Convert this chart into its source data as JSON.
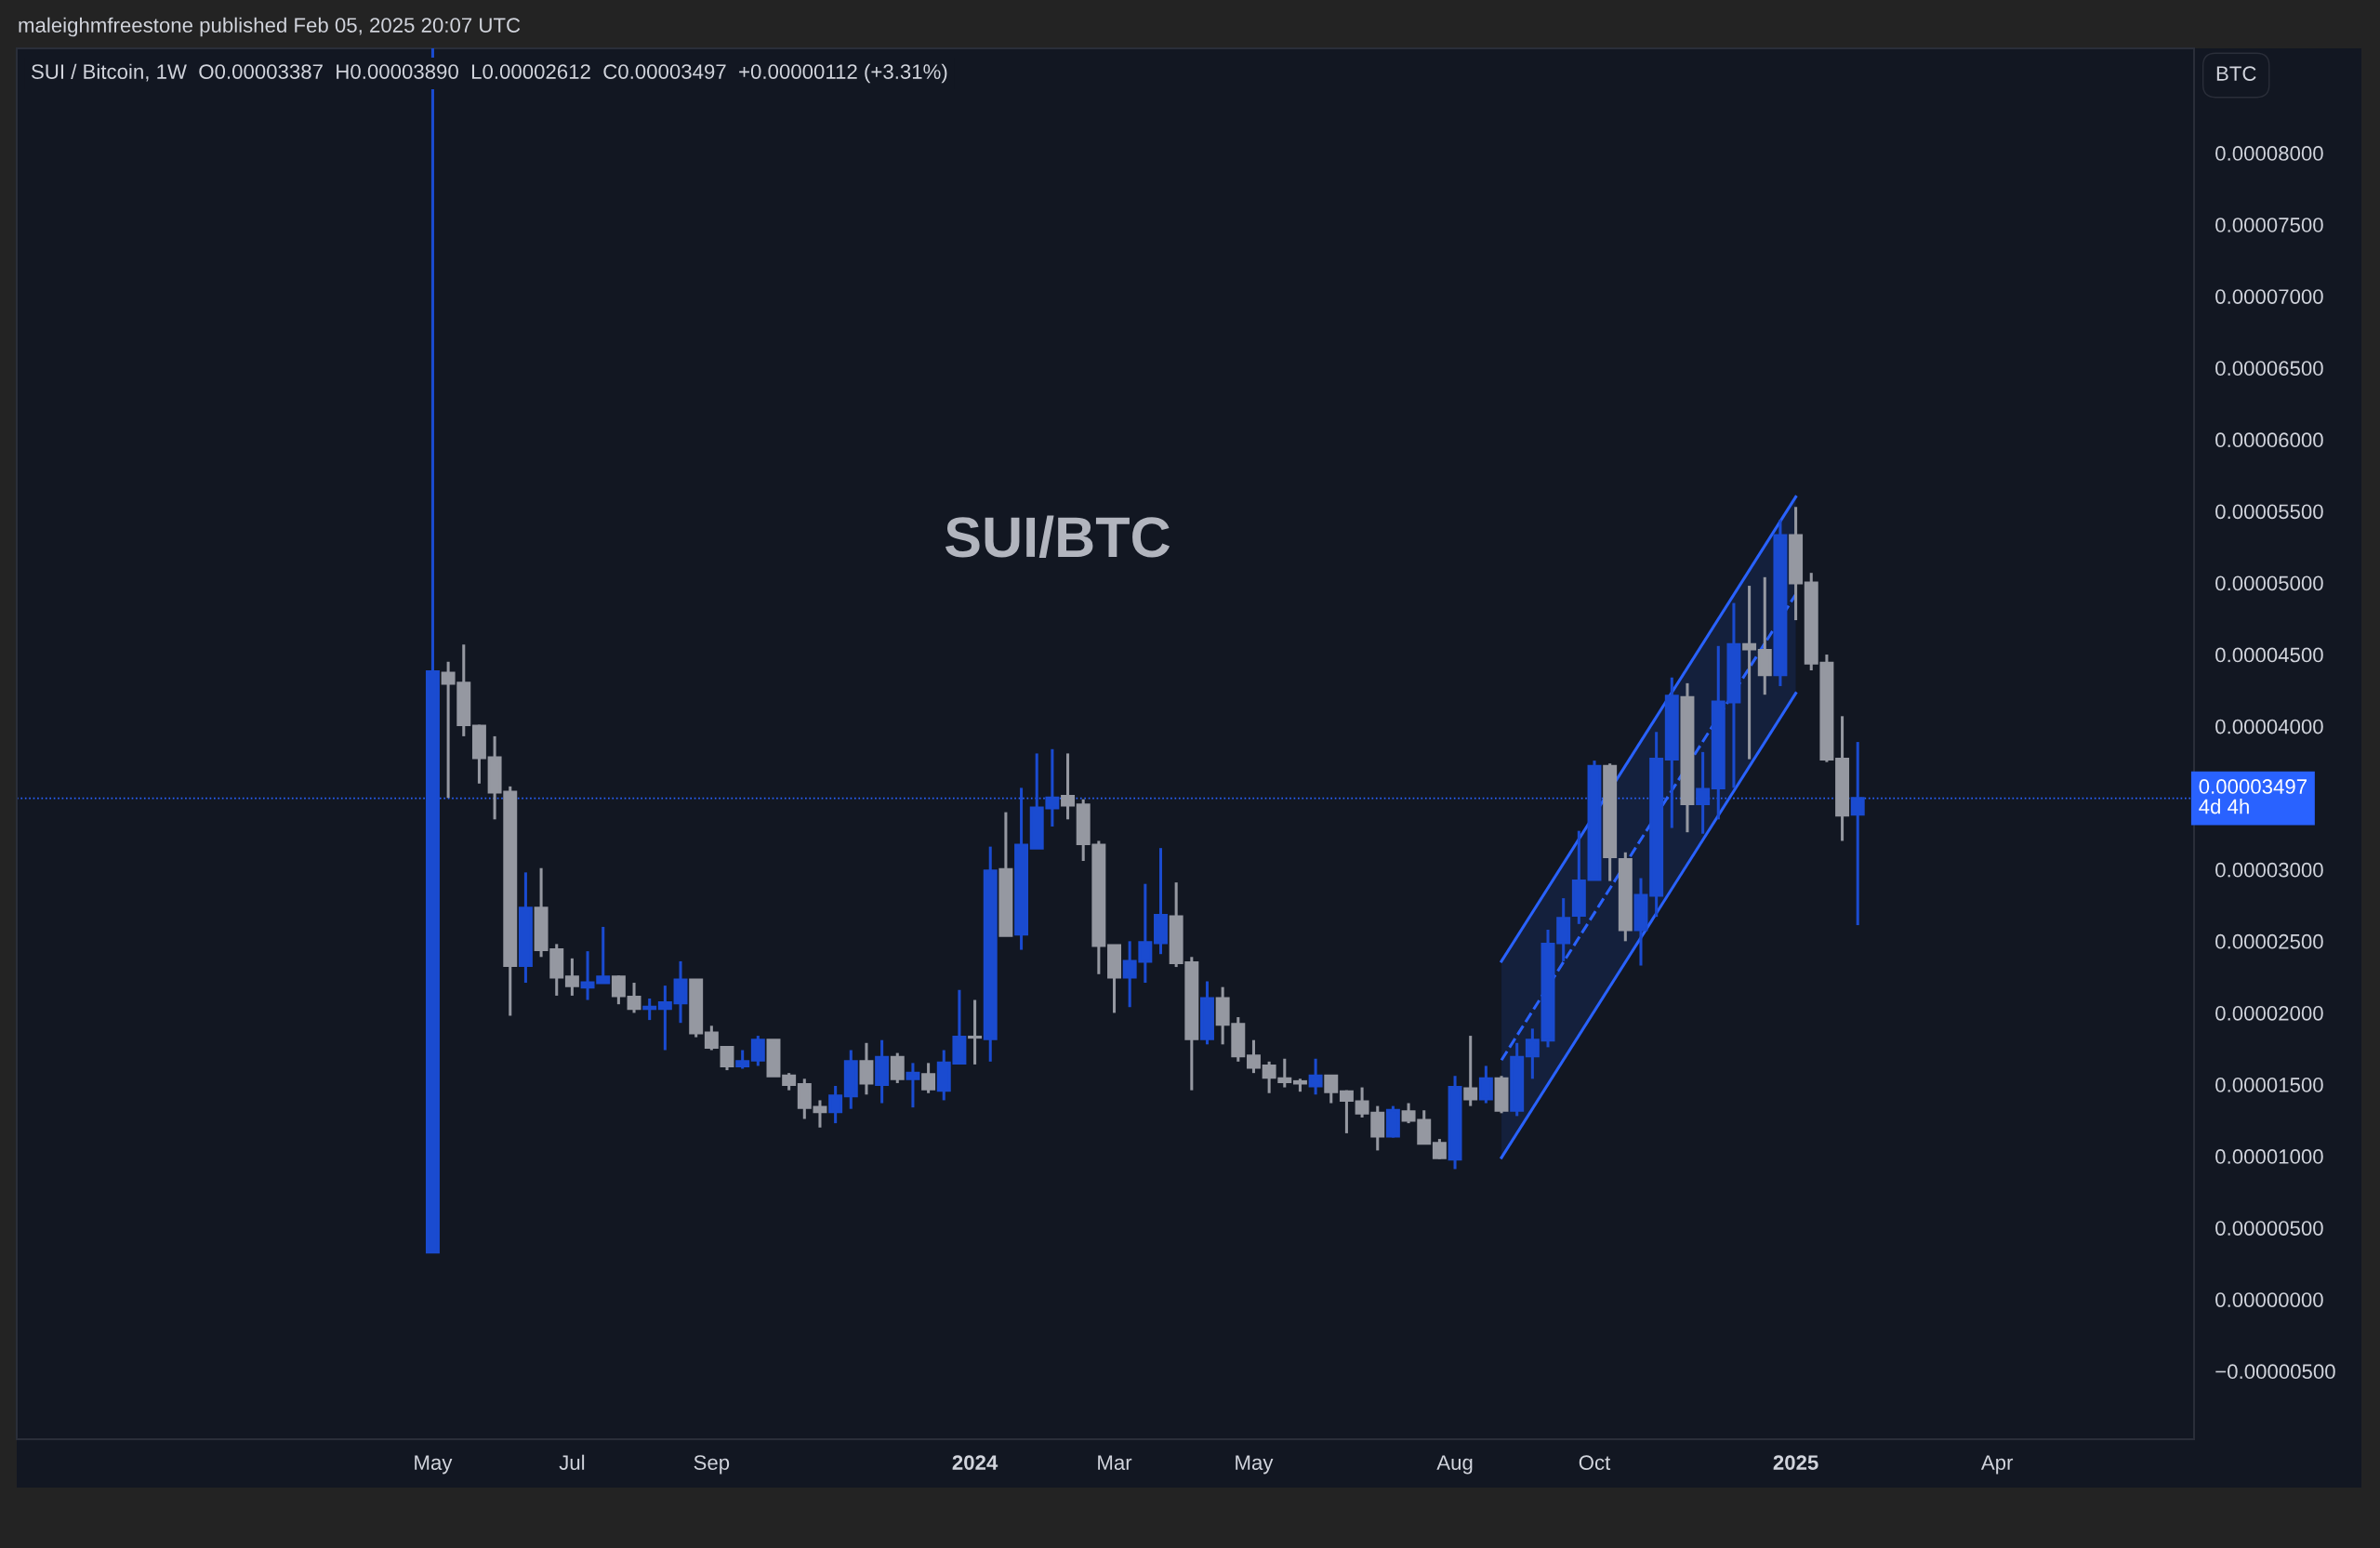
{
  "chart_data": {
    "type": "candlestick",
    "title": "SUI/BTC",
    "subtitle": "SUI / Bitcoin, 1W  O0.00003387  H0.00003890  L0.00002612  C0.00003497  +0.00000112 (+3.31%)",
    "annotations": [
      "maleighmfreestone published Feb 05, 2025 20:07 UTC",
      "BTC"
    ],
    "x": [
      "2023-05-01",
      "2023-05-08",
      "2023-05-15",
      "2023-05-22",
      "2023-05-29",
      "2023-06-05",
      "2023-06-12",
      "2023-06-19",
      "2023-06-26",
      "2023-07-03",
      "2023-07-10",
      "2023-07-17",
      "2023-07-24",
      "2023-07-31",
      "2023-08-07",
      "2023-08-14",
      "2023-08-21",
      "2023-08-28",
      "2023-09-04",
      "2023-09-11",
      "2023-09-18",
      "2023-09-25",
      "2023-10-02",
      "2023-10-09",
      "2023-10-16",
      "2023-10-23",
      "2023-10-30",
      "2023-11-06",
      "2023-11-13",
      "2023-11-20",
      "2023-11-27",
      "2023-12-04",
      "2023-12-11",
      "2023-12-18",
      "2023-12-25",
      "2024-01-01",
      "2024-01-08",
      "2024-01-15",
      "2024-01-22",
      "2024-01-29",
      "2024-02-05",
      "2024-02-12",
      "2024-02-19",
      "2024-02-26",
      "2024-03-04",
      "2024-03-11",
      "2024-03-18",
      "2024-03-25",
      "2024-04-01",
      "2024-04-08",
      "2024-04-15",
      "2024-04-22",
      "2024-04-29",
      "2024-05-06",
      "2024-05-13",
      "2024-05-20",
      "2024-05-27",
      "2024-06-03",
      "2024-06-10",
      "2024-06-17",
      "2024-06-24",
      "2024-07-01",
      "2024-07-08",
      "2024-07-15",
      "2024-07-22",
      "2024-07-29",
      "2024-08-05",
      "2024-08-12",
      "2024-08-19",
      "2024-08-26",
      "2024-09-02",
      "2024-09-09",
      "2024-09-16",
      "2024-09-23",
      "2024-09-30",
      "2024-10-07",
      "2024-10-14",
      "2024-10-21",
      "2024-10-28",
      "2024-11-04",
      "2024-11-11",
      "2024-11-18",
      "2024-11-25",
      "2024-12-02",
      "2024-12-09",
      "2024-12-16",
      "2024-12-23",
      "2024-12-30",
      "2025-01-06",
      "2025-01-13",
      "2025-01-20",
      "2025-01-27",
      "2025-02-03"
    ],
    "ohlc": [
      [
        3.3e-06,
        8.73e-05,
        3.3e-06,
        4.38e-05
      ],
      [
        4.37e-05,
        4.45e-05,
        3.5e-05,
        4.3e-05
      ],
      [
        4.3e-05,
        4.57e-05,
        3.93e-05,
        4.01e-05
      ],
      [
        4e-05,
        4.01e-05,
        3.6e-05,
        3.78e-05
      ],
      [
        3.78e-05,
        3.93e-05,
        3.35e-05,
        3.54e-05
      ],
      [
        3.54e-05,
        3.58e-05,
        1.98e-05,
        2.33e-05
      ],
      [
        2.33e-05,
        2.98e-05,
        2.21e-05,
        2.73e-05
      ],
      [
        2.73e-05,
        3.01e-05,
        2.39e-05,
        2.44e-05
      ],
      [
        2.44e-05,
        2.48e-05,
        2.12e-05,
        2.25e-05
      ],
      [
        2.25e-05,
        2.38e-05,
        2.12e-05,
        2.19e-05
      ],
      [
        2.18e-05,
        2.43e-05,
        2.09e-05,
        2.21e-05
      ],
      [
        2.21e-05,
        2.6e-05,
        2.21e-05,
        2.25e-05
      ],
      [
        2.25e-05,
        2.26e-05,
        2.06e-05,
        2.12e-05
      ],
      [
        2.11e-05,
        2.21e-05,
        2e-05,
        2.03e-05
      ],
      [
        2.03e-05,
        2.1e-05,
        1.95e-05,
        2.04e-05
      ],
      [
        2.03e-05,
        2.19e-05,
        1.74e-05,
        2.07e-05
      ],
      [
        2.07e-05,
        2.36e-05,
        1.93e-05,
        2.23e-05
      ],
      [
        2.23e-05,
        2.23e-05,
        1.83e-05,
        1.86e-05
      ],
      [
        1.86e-05,
        1.91e-05,
        1.74e-05,
        1.76e-05
      ],
      [
        1.76e-05,
        1.76e-05,
        1.6e-05,
        1.63e-05
      ],
      [
        1.63e-05,
        1.74e-05,
        1.61e-05,
        1.66e-05
      ],
      [
        1.67e-05,
        1.84e-05,
        1.63e-05,
        1.81e-05
      ],
      [
        1.81e-05,
        1.81e-05,
        1.56e-05,
        1.56e-05
      ],
      [
        1.56e-05,
        1.58e-05,
        1.46e-05,
        1.5e-05
      ],
      [
        1.5e-05,
        1.54e-05,
        1.26e-05,
        1.34e-05
      ],
      [
        1.34e-05,
        1.39e-05,
        1.2e-05,
        1.31e-05
      ],
      [
        1.31e-05,
        1.49e-05,
        1.23e-05,
        1.42e-05
      ],
      [
        1.42e-05,
        1.74e-05,
        1.33e-05,
        1.66e-05
      ],
      [
        1.66e-05,
        1.79e-05,
        1.43e-05,
        1.51e-05
      ],
      [
        1.5e-05,
        1.81e-05,
        1.37e-05,
        1.69e-05
      ],
      [
        1.69e-05,
        1.72e-05,
        1.51e-05,
        1.54e-05
      ],
      [
        1.54e-05,
        1.65e-05,
        1.34e-05,
        1.58e-05
      ],
      [
        1.57e-05,
        1.65e-05,
        1.44e-05,
        1.47e-05
      ],
      [
        1.46e-05,
        1.74e-05,
        1.39e-05,
        1.65e-05
      ],
      [
        1.65e-05,
        2.16e-05,
        1.65e-05,
        1.83e-05
      ],
      [
        1.83e-05,
        2.09e-05,
        1.64e-05,
        1.83e-05
      ],
      [
        1.82e-05,
        3.16e-05,
        1.66e-05,
        2.99e-05
      ],
      [
        3e-05,
        3.4e-05,
        2.54e-05,
        2.54e-05
      ],
      [
        2.55e-05,
        3.57e-05,
        2.44e-05,
        3.17e-05
      ],
      [
        3.15e-05,
        3.81e-05,
        3.15e-05,
        3.43e-05
      ],
      [
        3.43e-05,
        3.84e-05,
        3.3e-05,
        3.5e-05
      ],
      [
        3.51e-05,
        3.81e-05,
        3.35e-05,
        3.45e-05
      ],
      [
        3.45e-05,
        3.49e-05,
        3.06e-05,
        3.18e-05
      ],
      [
        3.17e-05,
        3.2e-05,
        2.27e-05,
        2.47e-05
      ],
      [
        2.47e-05,
        2.47e-05,
        2e-05,
        2.25e-05
      ],
      [
        2.25e-05,
        2.5e-05,
        2.04e-05,
        2.36e-05
      ],
      [
        2.36e-05,
        2.9e-05,
        2.21e-05,
        2.49e-05
      ],
      [
        2.49e-05,
        3.15e-05,
        2.41e-05,
        2.68e-05
      ],
      [
        2.67e-05,
        2.91e-05,
        2.32e-05,
        2.35e-05
      ],
      [
        2.35e-05,
        2.39e-05,
        1.46e-05,
        1.82e-05
      ],
      [
        1.82e-05,
        2.22e-05,
        1.78e-05,
        2.1e-05
      ],
      [
        2.1e-05,
        2.18e-05,
        1.78e-05,
        1.92e-05
      ],
      [
        1.92e-05,
        1.97e-05,
        1.66e-05,
        1.7e-05
      ],
      [
        1.7e-05,
        1.81e-05,
        1.58e-05,
        1.62e-05
      ],
      [
        1.63e-05,
        1.66e-05,
        1.44e-05,
        1.55e-05
      ],
      [
        1.54e-05,
        1.68e-05,
        1.48e-05,
        1.52e-05
      ],
      [
        1.52e-05,
        1.54e-05,
        1.45e-05,
        1.51e-05
      ],
      [
        1.49e-05,
        1.68e-05,
        1.43e-05,
        1.56e-05
      ],
      [
        1.56e-05,
        1.56e-05,
        1.37e-05,
        1.45e-05
      ],
      [
        1.45e-05,
        1.46e-05,
        1.16e-05,
        1.39e-05
      ],
      [
        1.38e-05,
        1.48e-05,
        1.27e-05,
        1.3e-05
      ],
      [
        1.3e-05,
        1.35e-05,
        1.04e-05,
        1.14e-05
      ],
      [
        1.14e-05,
        1.35e-05,
        1.13e-05,
        1.32e-05
      ],
      [
        1.31e-05,
        1.37e-05,
        1.23e-05,
        1.25e-05
      ],
      [
        1.25e-05,
        1.32e-05,
        1.09e-05,
        1.09e-05
      ],
      [
        1.09e-05,
        1.12e-05,
        9.8e-06,
        9.9e-06
      ],
      [
        9.8e-06,
        1.56e-05,
        9.1e-06,
        1.48e-05
      ],
      [
        1.47e-05,
        1.84e-05,
        1.35e-05,
        1.4e-05
      ],
      [
        1.4e-05,
        1.63e-05,
        1.37e-05,
        1.54e-05
      ],
      [
        1.54e-05,
        1.56e-05,
        1.3e-05,
        1.32e-05
      ],
      [
        1.32e-05,
        1.79e-05,
        1.28e-05,
        1.69e-05
      ],
      [
        1.7e-05,
        1.89e-05,
        1.54e-05,
        1.81e-05
      ],
      [
        1.81e-05,
        2.58e-05,
        1.76e-05,
        2.48e-05
      ],
      [
        2.49e-05,
        2.8e-05,
        2.36e-05,
        2.66e-05
      ],
      [
        2.68e-05,
        3.27e-05,
        2.62e-05,
        2.92e-05
      ],
      [
        2.93e-05,
        3.76e-05,
        2.93e-05,
        3.72e-05
      ],
      [
        3.72e-05,
        3.74e-05,
        2.92e-05,
        3.09e-05
      ],
      [
        3.07e-05,
        3.12e-05,
        2.5e-05,
        2.58e-05
      ],
      [
        2.58e-05,
        2.94e-05,
        2.33e-05,
        2.82e-05
      ],
      [
        2.82e-05,
        3.96e-05,
        2.67e-05,
        3.77e-05
      ],
      [
        3.77e-05,
        4.34e-05,
        3.29e-05,
        4.21e-05
      ],
      [
        4.2e-05,
        4.3e-05,
        3.26e-05,
        3.46e-05
      ],
      [
        3.46e-05,
        3.82e-05,
        3.25e-05,
        3.56e-05
      ],
      [
        3.57e-05,
        4.56e-05,
        3.35e-05,
        4.17e-05
      ],
      [
        4.17e-05,
        4.86e-05,
        3.57e-05,
        4.57e-05
      ],
      [
        4.57e-05,
        4.98e-05,
        3.77e-05,
        4.54e-05
      ],
      [
        4.53e-05,
        5.04e-05,
        4.22e-05,
        4.36e-05
      ],
      [
        4.36e-05,
        5.44e-05,
        4.28e-05,
        5.33e-05
      ],
      [
        5.33e-05,
        5.53e-05,
        4.74e-05,
        5e-05
      ],
      [
        5e-05,
        5.07e-05,
        4.39e-05,
        4.44e-05
      ],
      [
        4.44e-05,
        4.5e-05,
        3.75e-05,
        3.77e-05
      ],
      [
        3.77e-05,
        4.07e-05,
        3.2e-05,
        3.38e-05
      ],
      [
        3.387e-05,
        3.89e-05,
        2.612e-05,
        3.497e-05
      ]
    ],
    "colors": [
      "#1a4bd0",
      "#9598a1",
      "#9598a1",
      "#9598a1",
      "#9598a1",
      "#9598a1",
      "#1a4bd0",
      "#9598a1",
      "#9598a1",
      "#9598a1",
      "#1a4bd0",
      "#1a4bd0",
      "#9598a1",
      "#9598a1",
      "#1a4bd0",
      "#1a4bd0",
      "#1a4bd0",
      "#9598a1",
      "#9598a1",
      "#9598a1",
      "#1a4bd0",
      "#1a4bd0",
      "#9598a1",
      "#9598a1",
      "#9598a1",
      "#9598a1",
      "#1a4bd0",
      "#1a4bd0",
      "#9598a1",
      "#1a4bd0",
      "#9598a1",
      "#1a4bd0",
      "#9598a1",
      "#1a4bd0",
      "#1a4bd0",
      "#9598a1",
      "#1a4bd0",
      "#9598a1",
      "#1a4bd0",
      "#1a4bd0",
      "#1a4bd0",
      "#9598a1",
      "#9598a1",
      "#9598a1",
      "#9598a1",
      "#1a4bd0",
      "#1a4bd0",
      "#1a4bd0",
      "#9598a1",
      "#9598a1",
      "#1a4bd0",
      "#9598a1",
      "#9598a1",
      "#9598a1",
      "#9598a1",
      "#9598a1",
      "#9598a1",
      "#1a4bd0",
      "#9598a1",
      "#9598a1",
      "#9598a1",
      "#9598a1",
      "#1a4bd0",
      "#9598a1",
      "#9598a1",
      "#9598a1",
      "#1a4bd0",
      "#9598a1",
      "#1a4bd0",
      "#9598a1",
      "#1a4bd0",
      "#1a4bd0",
      "#1a4bd0",
      "#1a4bd0",
      "#1a4bd0",
      "#1a4bd0",
      "#9598a1",
      "#9598a1",
      "#1a4bd0",
      "#1a4bd0",
      "#1a4bd0",
      "#9598a1",
      "#1a4bd0",
      "#1a4bd0",
      "#1a4bd0",
      "#9598a1",
      "#9598a1",
      "#1a4bd0",
      "#9598a1",
      "#9598a1",
      "#9598a1",
      "#9598a1",
      "#1a4bd0"
    ],
    "series": [
      {
        "type": "line",
        "x": [
          "2024-08-26",
          "2025-01-06"
        ],
        "values": [
          2.36e-05,
          5.6e-05
        ],
        "color": "#2962ff",
        "line_style": "solid"
      },
      {
        "type": "line",
        "x": [
          "2024-08-26",
          "2025-01-06"
        ],
        "values": [
          1.67e-05,
          4.92e-05
        ],
        "lower": [
          9.9e-06,
          4.23e-05
        ],
        "upper": [
          2.36e-05,
          5.6e-05
        ],
        "color": "#2962ff",
        "line_style": "dashed"
      },
      {
        "type": "line",
        "x": [
          "2024-08-26",
          "2025-01-06"
        ],
        "values": [
          9.9e-06,
          4.23e-05
        ],
        "color": "#2962ff",
        "line_style": "solid"
      }
    ],
    "xlim": [
      "2022-10-25",
      "2025-07-05"
    ],
    "xticks": [
      {
        "value": "2023-05-01",
        "label": "May"
      },
      {
        "value": "2023-07-03",
        "label": "Jul"
      },
      {
        "value": "2023-09-04",
        "label": "Sep"
      },
      {
        "value": "2024-01-01",
        "label": "2024"
      },
      {
        "value": "2024-03-04",
        "label": "Mar"
      },
      {
        "value": "2024-05-06",
        "label": "May"
      },
      {
        "value": "2024-08-05",
        "label": "Aug"
      },
      {
        "value": "2024-10-07",
        "label": "Oct"
      },
      {
        "value": "2025-01-06",
        "label": "2025"
      },
      {
        "value": "2025-04-07",
        "label": "Apr"
      }
    ],
    "ylim": [
      -9.75e-06,
      8.73e-05
    ],
    "yticks": [
      {
        "value": -5e-06,
        "label": "−0.00000500"
      },
      {
        "value": 0,
        "label": "0.00000000"
      },
      {
        "value": 5e-06,
        "label": "0.00000500"
      },
      {
        "value": 1e-05,
        "label": "0.00001000"
      },
      {
        "value": 1.5e-05,
        "label": "0.00001500"
      },
      {
        "value": 2e-05,
        "label": "0.00002000"
      },
      {
        "value": 2.5e-05,
        "label": "0.00002500"
      },
      {
        "value": 3e-05,
        "label": "0.00003000"
      },
      {
        "value": 4e-05,
        "label": "0.00004000"
      },
      {
        "value": 4.5e-05,
        "label": "0.00004500"
      },
      {
        "value": 5e-05,
        "label": "0.00005000"
      },
      {
        "value": 5.5e-05,
        "label": "0.00005500"
      },
      {
        "value": 6e-05,
        "label": "0.00006000"
      },
      {
        "value": 6.5e-05,
        "label": "0.00006500"
      },
      {
        "value": 7e-05,
        "label": "0.00007000"
      },
      {
        "value": 7.5e-05,
        "label": "0.00007500"
      },
      {
        "value": 8e-05,
        "label": "0.00008000"
      }
    ],
    "ref_lines": [
      {
        "axis": "y",
        "value": 3.497e-05,
        "label": "0.00003497\n4d 4h",
        "color": "#2962ff",
        "line_style": "dotted"
      }
    ],
    "grid": false,
    "legend": false
  }
}
